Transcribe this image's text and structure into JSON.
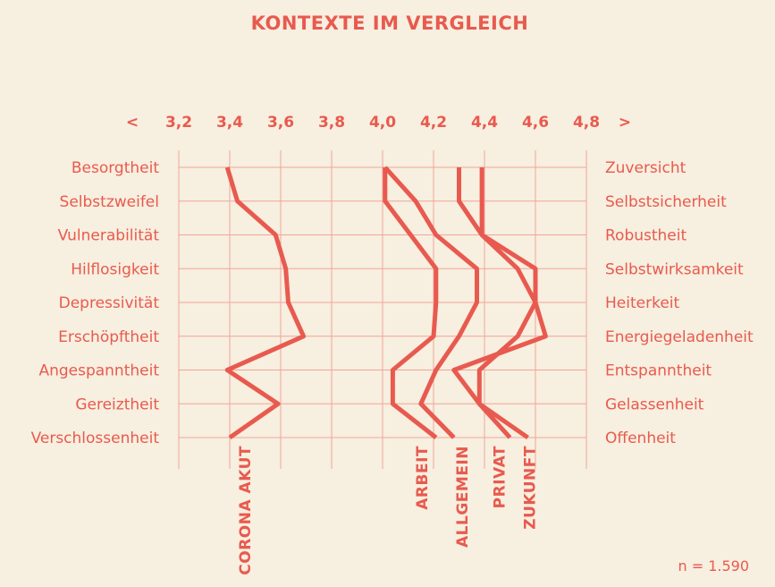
{
  "chart_data": {
    "type": "line",
    "title": "KONTEXTE IM VERGLEICH",
    "x_ticks": [
      "3,2",
      "3,4",
      "3,6",
      "3,8",
      "4,0",
      "4,2",
      "4,4",
      "4,6",
      "4,8"
    ],
    "x_tick_values": [
      3.2,
      3.4,
      3.6,
      3.8,
      4.0,
      4.2,
      4.4,
      4.6,
      4.8
    ],
    "xlim": [
      3.2,
      4.8
    ],
    "arrow_left": "<",
    "arrow_right": ">",
    "left_labels": [
      "Besorgtheit",
      "Selbstzweifel",
      "Vulnerabilität",
      "Hilflosigkeit",
      "Depressivität",
      "Erschöpftheit",
      "Angespanntheit",
      "Gereiztheit",
      "Verschlossenheit"
    ],
    "right_labels": [
      "Zuversicht",
      "Selbstsicherheit",
      "Robustheit",
      "Selbstwirksamkeit",
      "Heiterkeit",
      "Energiegeladenheit",
      "Entspanntheit",
      "Gelassenheit",
      "Offenheit"
    ],
    "series": [
      {
        "name": "CORONA AKUT",
        "values": [
          3.39,
          3.43,
          3.58,
          3.62,
          3.63,
          3.69,
          3.39,
          3.59,
          3.4
        ]
      },
      {
        "name": "ARBEIT",
        "values": [
          4.01,
          4.01,
          4.11,
          4.21,
          4.21,
          4.2,
          4.04,
          4.04,
          4.21
        ]
      },
      {
        "name": "ALLGEMEIN",
        "values": [
          4.01,
          4.13,
          4.21,
          4.37,
          4.37,
          4.3,
          4.21,
          4.15,
          4.28
        ]
      },
      {
        "name": "PRIVAT",
        "values": [
          4.3,
          4.3,
          4.39,
          4.6,
          4.6,
          4.53,
          4.38,
          4.38,
          4.5
        ]
      },
      {
        "name": "ZUKUNFT",
        "values": [
          4.39,
          4.39,
          4.39,
          4.53,
          4.6,
          4.64,
          4.28,
          4.38,
          4.57
        ]
      }
    ],
    "grid": true
  },
  "footnote": "n = 1.590"
}
